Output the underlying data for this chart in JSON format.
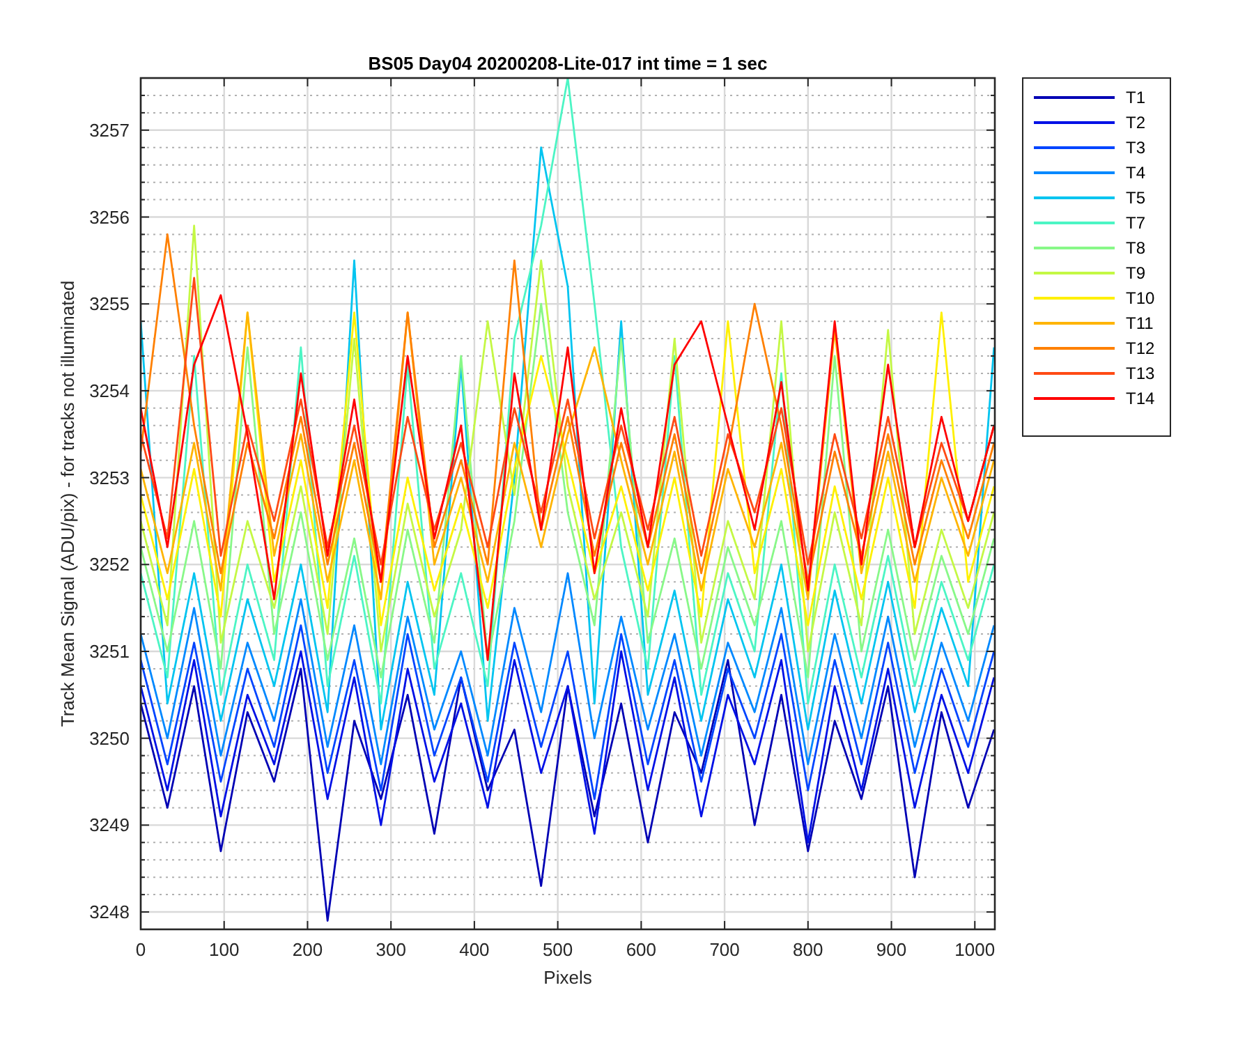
{
  "chart_data": {
    "type": "line",
    "title": "BS05 Day04 20200208-Lite-017 int time = 1 sec",
    "xlabel": "Pixels",
    "ylabel": "Track Mean Signal (ADU/pix) - for tracks not illuminated",
    "xlim": [
      0,
      1024
    ],
    "xticks": [
      0,
      100,
      200,
      300,
      400,
      500,
      600,
      700,
      800,
      900,
      1000
    ],
    "ylim": [
      3247.8,
      3257.6
    ],
    "yticks": [
      3248,
      {
        "value": 3248.2,
        "label": null
      },
      {
        "value": 3248.4,
        "label": null
      },
      {
        "value": 3248.6,
        "label": null
      },
      {
        "value": 3248.8,
        "label": null
      },
      3249,
      {
        "value": 3249.2,
        "label": null
      },
      {
        "value": 3249.4,
        "label": null
      },
      {
        "value": 3249.6,
        "label": null
      },
      {
        "value": 3249.8,
        "label": null
      },
      3250,
      {
        "value": 3250.2,
        "label": null
      },
      {
        "value": 3250.4,
        "label": null
      },
      {
        "value": 3250.6,
        "label": null
      },
      {
        "value": 3250.8,
        "label": null
      },
      3251,
      {
        "value": 3251.2,
        "label": null
      },
      {
        "value": 3251.4,
        "label": null
      },
      {
        "value": 3251.6,
        "label": null
      },
      {
        "value": 3251.8,
        "label": null
      },
      3252,
      {
        "value": 3252.2,
        "label": null
      },
      {
        "value": 3252.4,
        "label": null
      },
      {
        "value": 3252.6,
        "label": null
      },
      {
        "value": 3252.8,
        "label": null
      },
      3253,
      {
        "value": 3253.2,
        "label": null
      },
      {
        "value": 3253.4,
        "label": null
      },
      {
        "value": 3253.6,
        "label": null
      },
      {
        "value": 3253.8,
        "label": null
      },
      3254,
      {
        "value": 3254.2,
        "label": null
      },
      {
        "value": 3254.4,
        "label": null
      },
      {
        "value": 3254.6,
        "label": null
      },
      {
        "value": 3254.8,
        "label": null
      },
      3255,
      {
        "value": 3255.2,
        "label": null
      },
      {
        "value": 3255.4,
        "label": null
      },
      {
        "value": 3255.6,
        "label": null
      },
      {
        "value": 3255.8,
        "label": null
      },
      3256,
      {
        "value": 3256.2,
        "label": null
      },
      {
        "value": 3256.4,
        "label": null
      },
      {
        "value": 3256.6,
        "label": null
      },
      {
        "value": 3256.8,
        "label": null
      },
      3257,
      {
        "value": 3257.2,
        "label": null
      },
      {
        "value": 3257.4,
        "label": null
      }
    ],
    "grid": true,
    "legend": "top right",
    "marker": "none",
    "line_style": "solid",
    "x": [
      0,
      32,
      64,
      96,
      128,
      160,
      192,
      224,
      256,
      288,
      320,
      352,
      384,
      416,
      448,
      480,
      512,
      544,
      576,
      608,
      640,
      672,
      704,
      736,
      768,
      800,
      832,
      864,
      896,
      928,
      960,
      992,
      1023
    ],
    "series": [
      {
        "name": "T1",
        "color": "#0000b4",
        "values": [
          3250.4,
          3249.2,
          3250.6,
          3248.7,
          3250.3,
          3249.5,
          3250.8,
          3247.9,
          3250.2,
          3249.3,
          3250.5,
          3248.9,
          3250.7,
          3249.4,
          3250.1,
          3248.3,
          3250.6,
          3249.1,
          3250.4,
          3248.8,
          3250.3,
          3249.6,
          3250.9,
          3249.0,
          3250.5,
          3248.7,
          3250.2,
          3249.3,
          3250.6,
          3248.4,
          3250.3,
          3249.2,
          3250.1
        ]
      },
      {
        "name": "T2",
        "color": "#0010e6",
        "values": [
          3250.6,
          3249.4,
          3250.9,
          3249.1,
          3250.5,
          3249.7,
          3251.0,
          3249.3,
          3250.7,
          3249.0,
          3250.8,
          3249.5,
          3250.4,
          3249.2,
          3250.9,
          3249.6,
          3250.6,
          3248.9,
          3251.0,
          3249.4,
          3250.7,
          3249.1,
          3250.5,
          3249.7,
          3250.9,
          3248.8,
          3250.6,
          3249.4,
          3250.8,
          3249.2,
          3250.5,
          3249.6,
          3250.7
        ]
      },
      {
        "name": "T3",
        "color": "#0044ff",
        "values": [
          3250.9,
          3249.7,
          3251.1,
          3249.5,
          3250.8,
          3249.9,
          3251.3,
          3249.6,
          3250.9,
          3249.4,
          3251.2,
          3249.8,
          3250.7,
          3249.5,
          3251.1,
          3249.9,
          3251.0,
          3249.3,
          3251.2,
          3249.7,
          3250.9,
          3249.5,
          3250.8,
          3250.0,
          3251.2,
          3249.4,
          3250.9,
          3249.7,
          3251.1,
          3249.6,
          3250.8,
          3249.9,
          3251.0
        ]
      },
      {
        "name": "T4",
        "color": "#0088ff",
        "values": [
          3251.2,
          3250.0,
          3251.5,
          3249.8,
          3251.1,
          3250.2,
          3251.6,
          3249.9,
          3251.3,
          3249.7,
          3251.4,
          3250.1,
          3251.0,
          3249.8,
          3251.5,
          3250.3,
          3251.9,
          3250.0,
          3251.4,
          3250.1,
          3251.2,
          3249.8,
          3251.1,
          3250.3,
          3251.5,
          3249.7,
          3251.2,
          3250.0,
          3251.4,
          3249.9,
          3251.1,
          3250.2,
          3251.3
        ]
      },
      {
        "name": "T5",
        "color": "#00c4f0",
        "values": [
          3254.8,
          3250.4,
          3251.9,
          3250.2,
          3251.6,
          3250.6,
          3252.0,
          3250.3,
          3255.5,
          3250.1,
          3251.8,
          3250.5,
          3254.3,
          3250.2,
          3253.0,
          3256.8,
          3255.2,
          3250.4,
          3254.8,
          3250.5,
          3251.7,
          3250.2,
          3251.6,
          3250.7,
          3252.0,
          3250.1,
          3251.7,
          3250.4,
          3251.8,
          3250.3,
          3251.5,
          3250.6,
          3254.5
        ]
      },
      {
        "name": "T7",
        "color": "#4cf5c4",
        "values": [
          3251.9,
          3250.7,
          3254.4,
          3250.5,
          3252.0,
          3250.9,
          3254.5,
          3250.6,
          3252.1,
          3250.4,
          3254.3,
          3250.8,
          3251.9,
          3250.6,
          3254.6,
          3255.9,
          3257.6,
          3255.0,
          3252.2,
          3250.8,
          3254.4,
          3250.5,
          3251.9,
          3251.0,
          3254.2,
          3250.4,
          3252.0,
          3250.7,
          3252.1,
          3250.6,
          3251.8,
          3250.9,
          3252.0
        ]
      },
      {
        "name": "T8",
        "color": "#88f888",
        "values": [
          3252.2,
          3251.0,
          3252.5,
          3250.8,
          3254.5,
          3251.2,
          3252.6,
          3250.9,
          3252.3,
          3250.7,
          3252.4,
          3251.1,
          3254.4,
          3250.9,
          3252.5,
          3255.0,
          3252.6,
          3251.3,
          3254.6,
          3251.1,
          3252.3,
          3250.8,
          3252.2,
          3251.3,
          3252.5,
          3250.7,
          3254.4,
          3251.0,
          3252.4,
          3250.9,
          3252.1,
          3251.2,
          3252.3
        ]
      },
      {
        "name": "T9",
        "color": "#c4f844",
        "values": [
          3252.5,
          3251.3,
          3255.9,
          3251.1,
          3252.5,
          3251.5,
          3252.9,
          3251.2,
          3254.6,
          3251.0,
          3252.7,
          3251.4,
          3252.4,
          3254.8,
          3252.8,
          3255.5,
          3252.9,
          3251.6,
          3252.6,
          3251.4,
          3254.6,
          3251.1,
          3252.5,
          3251.6,
          3254.8,
          3251.0,
          3252.6,
          3251.3,
          3254.7,
          3251.2,
          3252.4,
          3251.5,
          3252.6
        ]
      },
      {
        "name": "T10",
        "color": "#fff000",
        "values": [
          3252.8,
          3251.6,
          3253.1,
          3251.4,
          3254.9,
          3251.8,
          3253.2,
          3251.5,
          3254.9,
          3251.3,
          3253.0,
          3251.7,
          3252.7,
          3251.5,
          3253.1,
          3254.4,
          3253.2,
          3251.9,
          3252.9,
          3251.7,
          3253.0,
          3251.4,
          3254.8,
          3251.9,
          3253.1,
          3251.3,
          3252.9,
          3251.6,
          3253.0,
          3251.5,
          3254.9,
          3251.8,
          3252.9
        ]
      },
      {
        "name": "T11",
        "color": "#ffb400",
        "values": [
          3253.1,
          3251.9,
          3253.4,
          3251.7,
          3254.9,
          3252.1,
          3253.5,
          3251.8,
          3253.2,
          3251.6,
          3254.9,
          3252.0,
          3253.0,
          3251.8,
          3253.4,
          3252.2,
          3253.5,
          3254.5,
          3253.2,
          3252.0,
          3253.3,
          3251.7,
          3253.1,
          3252.2,
          3253.4,
          3251.6,
          3254.7,
          3251.9,
          3253.3,
          3251.8,
          3253.0,
          3252.1,
          3253.2
        ]
      },
      {
        "name": "T12",
        "color": "#ff8000",
        "values": [
          3253.3,
          3255.8,
          3253.6,
          3251.9,
          3253.4,
          3252.3,
          3253.7,
          3252.0,
          3253.4,
          3251.8,
          3254.9,
          3252.2,
          3253.2,
          3252.0,
          3255.5,
          3252.4,
          3253.7,
          3252.1,
          3253.4,
          3252.2,
          3253.5,
          3251.9,
          3253.3,
          3255.0,
          3253.6,
          3251.8,
          3253.3,
          3252.1,
          3253.5,
          3252.0,
          3253.2,
          3252.3,
          3253.4
        ]
      },
      {
        "name": "T13",
        "color": "#ff4a14",
        "values": [
          3253.5,
          3252.3,
          3255.3,
          3252.1,
          3253.6,
          3252.5,
          3253.9,
          3252.2,
          3253.6,
          3252.0,
          3253.7,
          3252.4,
          3253.4,
          3252.2,
          3253.8,
          3252.6,
          3253.9,
          3252.3,
          3253.6,
          3252.4,
          3253.7,
          3252.1,
          3253.5,
          3252.6,
          3253.8,
          3252.0,
          3253.5,
          3252.3,
          3253.7,
          3252.2,
          3253.4,
          3252.5,
          3253.6
        ]
      },
      {
        "name": "T14",
        "color": "#ff0000",
        "values": [
          3253.8,
          3252.2,
          3254.3,
          3255.1,
          3253.5,
          3251.6,
          3254.2,
          3252.1,
          3253.9,
          3251.8,
          3254.4,
          3252.3,
          3253.6,
          3250.9,
          3254.2,
          3252.4,
          3254.5,
          3251.9,
          3253.8,
          3252.2,
          3254.3,
          3254.8,
          3253.6,
          3252.4,
          3254.1,
          3251.7,
          3254.8,
          3252.0,
          3254.3,
          3252.2,
          3253.7,
          3252.5,
          3253.6
        ]
      }
    ]
  }
}
